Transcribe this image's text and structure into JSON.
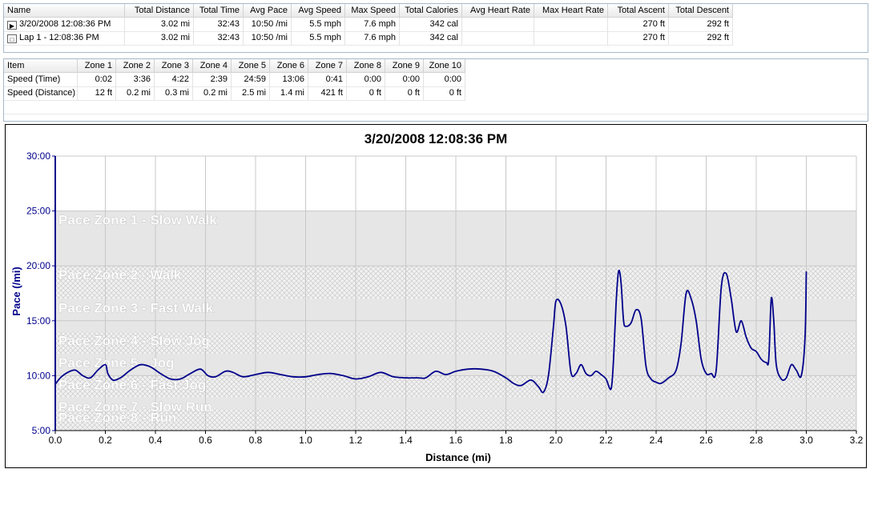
{
  "summary_table": {
    "columns": [
      "Name",
      "Total Distance",
      "Total Time",
      "Avg Pace",
      "Avg Speed",
      "Max Speed",
      "Total Calories",
      "Avg Heart Rate",
      "Max Heart Rate",
      "Total Ascent",
      "Total Descent"
    ],
    "rows": [
      {
        "icon": "run-icon",
        "cells": [
          "3/20/2008 12:08:36 PM",
          "3.02 mi",
          "32:43",
          "10:50 /mi",
          "5.5 mph",
          "7.6 mph",
          "342 cal",
          "",
          "",
          "270 ft",
          "292 ft"
        ]
      },
      {
        "icon": "lap-icon",
        "cells": [
          "Lap 1 - 12:08:36 PM",
          "3.02 mi",
          "32:43",
          "10:50 /mi",
          "5.5 mph",
          "7.6 mph",
          "342 cal",
          "",
          "",
          "270 ft",
          "292 ft"
        ]
      }
    ]
  },
  "zone_table": {
    "columns": [
      "Item",
      "Zone 1",
      "Zone 2",
      "Zone 3",
      "Zone 4",
      "Zone 5",
      "Zone 6",
      "Zone 7",
      "Zone 8",
      "Zone 9",
      "Zone 10"
    ],
    "rows": [
      {
        "cells": [
          "Speed (Time)",
          "0:02",
          "3:36",
          "4:22",
          "2:39",
          "24:59",
          "13:06",
          "0:41",
          "0:00",
          "0:00",
          "0:00"
        ]
      },
      {
        "cells": [
          "Speed (Distance)",
          "12 ft",
          "0.2 mi",
          "0.3 mi",
          "0.2 mi",
          "2.5 mi",
          "1.4 mi",
          "421 ft",
          "0 ft",
          "0 ft",
          "0 ft"
        ]
      }
    ]
  },
  "chart_data": {
    "type": "line",
    "title": "3/20/2008 12:08:36 PM",
    "xlabel": "Distance (mi)",
    "ylabel": "Pace (/mi)",
    "xlim": [
      0.0,
      3.2
    ],
    "ylim": [
      5,
      30
    ],
    "x_ticks": [
      "0.0",
      "0.2",
      "0.4",
      "0.6",
      "0.8",
      "1.0",
      "1.2",
      "1.4",
      "1.6",
      "1.8",
      "2.0",
      "2.2",
      "2.4",
      "2.6",
      "2.8",
      "3.0",
      "3.2"
    ],
    "y_ticks": [
      {
        "value": 5,
        "label": "5:00"
      },
      {
        "value": 10,
        "label": "10:00"
      },
      {
        "value": 15,
        "label": "15:00"
      },
      {
        "value": 20,
        "label": "20:00"
      },
      {
        "value": 25,
        "label": "25:00"
      },
      {
        "value": 30,
        "label": "30:00"
      }
    ],
    "grid": true,
    "line_color": "#00008b",
    "zones": [
      {
        "label": "Pace Zone 1 - Slow Walk",
        "min": 20,
        "max": 25,
        "pattern": "solid"
      },
      {
        "label": "Pace Zone 2 - Walk",
        "min": 17,
        "max": 20,
        "pattern": "hatch"
      },
      {
        "label": "Pace Zone 3 - Fast Walk",
        "min": 14,
        "max": 17,
        "pattern": "solid"
      },
      {
        "label": "Pace Zone 4 - Slow Jog",
        "min": 12,
        "max": 14,
        "pattern": "hatch"
      },
      {
        "label": "Pace Zone 5 - Jog",
        "min": 10,
        "max": 12,
        "pattern": "solid"
      },
      {
        "label": "Pace Zone 6 - Fast Jog",
        "min": 8,
        "max": 10,
        "pattern": "hatch"
      },
      {
        "label": "Pace Zone 7 - Slow Run",
        "min": 7,
        "max": 8,
        "pattern": "solid"
      },
      {
        "label": "Pace Zone 8 - Run",
        "min": 5,
        "max": 7,
        "pattern": "hatch"
      }
    ],
    "series": [
      {
        "x": [
          0.0,
          0.02,
          0.05,
          0.08,
          0.11,
          0.14,
          0.17,
          0.2,
          0.21,
          0.23,
          0.26,
          0.3,
          0.34,
          0.38,
          0.42,
          0.46,
          0.5,
          0.54,
          0.58,
          0.61,
          0.64,
          0.68,
          0.71,
          0.75,
          0.8,
          0.85,
          0.9,
          0.95,
          1.0,
          1.05,
          1.1,
          1.15,
          1.2,
          1.25,
          1.3,
          1.35,
          1.4,
          1.45,
          1.48,
          1.52,
          1.56,
          1.6,
          1.65,
          1.7,
          1.75,
          1.8,
          1.83,
          1.86,
          1.9,
          1.93,
          1.95,
          1.97,
          1.99,
          2.0,
          2.02,
          2.04,
          2.06,
          2.08,
          2.1,
          2.12,
          2.14,
          2.16,
          2.18,
          2.2,
          2.22,
          2.23,
          2.24,
          2.25,
          2.26,
          2.27,
          2.28,
          2.3,
          2.32,
          2.34,
          2.36,
          2.38,
          2.4,
          2.42,
          2.45,
          2.48,
          2.5,
          2.52,
          2.54,
          2.56,
          2.58,
          2.6,
          2.62,
          2.64,
          2.66,
          2.68,
          2.7,
          2.72,
          2.74,
          2.76,
          2.78,
          2.8,
          2.82,
          2.84,
          2.85,
          2.86,
          2.87,
          2.88,
          2.9,
          2.92,
          2.94,
          2.96,
          2.98,
          2.995,
          3.0
        ],
        "y": [
          9.2,
          9.8,
          10.3,
          10.5,
          10.0,
          9.8,
          10.5,
          11.0,
          10.2,
          9.6,
          9.8,
          10.5,
          11.0,
          10.8,
          10.2,
          9.7,
          9.7,
          10.2,
          10.6,
          10.0,
          9.9,
          10.4,
          10.3,
          9.9,
          10.1,
          10.3,
          10.1,
          9.9,
          9.9,
          10.1,
          10.2,
          10.0,
          9.7,
          9.9,
          10.3,
          9.9,
          9.8,
          9.8,
          9.8,
          10.4,
          10.1,
          10.4,
          10.6,
          10.6,
          10.4,
          9.8,
          9.3,
          9.1,
          9.6,
          9.0,
          8.5,
          10.0,
          14.5,
          16.8,
          16.5,
          14.5,
          10.3,
          10.2,
          11.0,
          10.2,
          10.0,
          10.4,
          10.1,
          9.7,
          8.8,
          11.5,
          16.5,
          19.5,
          18.5,
          15.0,
          14.5,
          14.8,
          16.0,
          15.2,
          10.8,
          9.7,
          9.4,
          9.3,
          9.8,
          10.5,
          13.0,
          17.5,
          17.0,
          15.0,
          11.5,
          10.2,
          10.2,
          10.5,
          18.0,
          19.3,
          17.0,
          14.0,
          15.0,
          13.5,
          12.5,
          12.2,
          11.5,
          11.2,
          11.5,
          17.0,
          15.0,
          11.0,
          9.7,
          9.8,
          11.0,
          10.5,
          10.0,
          13.5,
          19.5
        ]
      }
    ]
  }
}
